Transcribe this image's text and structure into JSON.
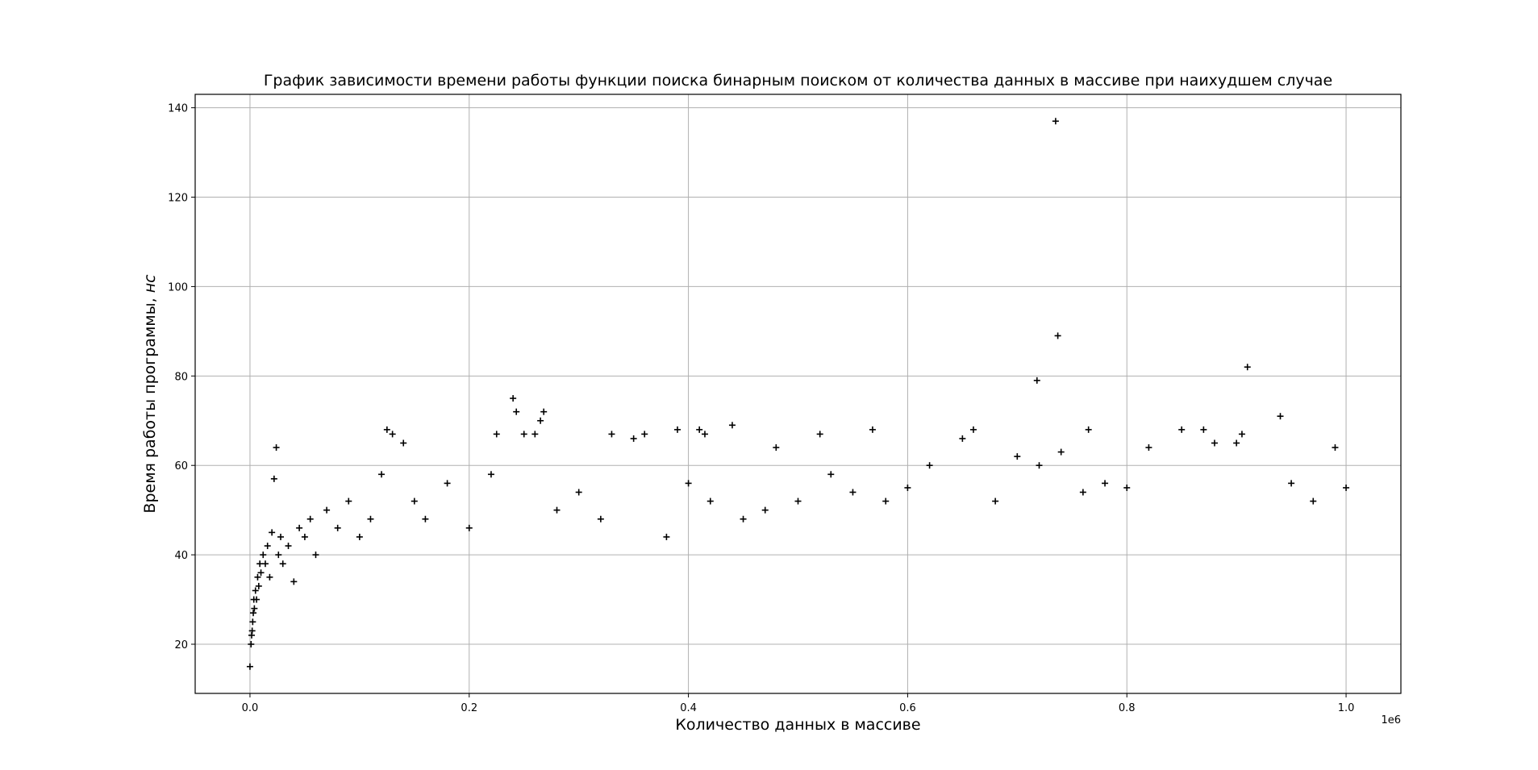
{
  "chart_data": {
    "type": "scatter",
    "title": "График зависимости времени работы функции поиска бинарным поиском от количества данных в массиве при наихудшем случае",
    "xlabel": "Количество данных в массиве",
    "ylabel_main": "Время работы программы, ",
    "ylabel_unit": "нс",
    "x_offset_label": "1e6",
    "xlim": [
      -0.05,
      1.05
    ],
    "ylim": [
      9,
      143
    ],
    "x_scale": 1000000,
    "xticks": [
      0.0,
      0.2,
      0.4,
      0.6,
      0.8,
      1.0
    ],
    "xtick_labels": [
      "0.0",
      "0.2",
      "0.4",
      "0.6",
      "0.8",
      "1.0"
    ],
    "yticks": [
      20,
      40,
      60,
      80,
      100,
      120,
      140
    ],
    "ytick_labels": [
      "20",
      "40",
      "60",
      "80",
      "100",
      "120",
      "140"
    ],
    "grid": true,
    "marker": "+",
    "marker_color": "#000000",
    "series": [
      {
        "points": [
          [
            0,
            15
          ],
          [
            1000,
            20
          ],
          [
            1500,
            22
          ],
          [
            2000,
            23
          ],
          [
            2500,
            25
          ],
          [
            3000,
            27
          ],
          [
            3500,
            30
          ],
          [
            4000,
            28
          ],
          [
            5000,
            32
          ],
          [
            6000,
            30
          ],
          [
            7000,
            35
          ],
          [
            8000,
            33
          ],
          [
            9000,
            38
          ],
          [
            10000,
            36
          ],
          [
            12000,
            40
          ],
          [
            14000,
            38
          ],
          [
            16000,
            42
          ],
          [
            18000,
            35
          ],
          [
            20000,
            45
          ],
          [
            22000,
            57
          ],
          [
            24000,
            64
          ],
          [
            26000,
            40
          ],
          [
            28000,
            44
          ],
          [
            30000,
            38
          ],
          [
            35000,
            42
          ],
          [
            40000,
            34
          ],
          [
            45000,
            46
          ],
          [
            50000,
            44
          ],
          [
            55000,
            48
          ],
          [
            60000,
            40
          ],
          [
            70000,
            50
          ],
          [
            80000,
            46
          ],
          [
            90000,
            52
          ],
          [
            100000,
            44
          ],
          [
            110000,
            48
          ],
          [
            120000,
            58
          ],
          [
            125000,
            68
          ],
          [
            130000,
            67
          ],
          [
            140000,
            65
          ],
          [
            150000,
            52
          ],
          [
            160000,
            48
          ],
          [
            180000,
            56
          ],
          [
            200000,
            46
          ],
          [
            220000,
            58
          ],
          [
            225000,
            67
          ],
          [
            240000,
            75
          ],
          [
            243000,
            72
          ],
          [
            250000,
            67
          ],
          [
            260000,
            67
          ],
          [
            265000,
            70
          ],
          [
            268000,
            72
          ],
          [
            280000,
            50
          ],
          [
            300000,
            54
          ],
          [
            320000,
            48
          ],
          [
            330000,
            67
          ],
          [
            350000,
            66
          ],
          [
            360000,
            67
          ],
          [
            380000,
            44
          ],
          [
            390000,
            68
          ],
          [
            400000,
            56
          ],
          [
            410000,
            68
          ],
          [
            415000,
            67
          ],
          [
            420000,
            52
          ],
          [
            440000,
            69
          ],
          [
            450000,
            48
          ],
          [
            470000,
            50
          ],
          [
            480000,
            64
          ],
          [
            500000,
            52
          ],
          [
            520000,
            67
          ],
          [
            530000,
            58
          ],
          [
            550000,
            54
          ],
          [
            568000,
            68
          ],
          [
            580000,
            52
          ],
          [
            600000,
            55
          ],
          [
            620000,
            60
          ],
          [
            650000,
            66
          ],
          [
            660000,
            68
          ],
          [
            680000,
            52
          ],
          [
            700000,
            62
          ],
          [
            718000,
            79
          ],
          [
            720000,
            60
          ],
          [
            735000,
            137
          ],
          [
            737000,
            89
          ],
          [
            740000,
            63
          ],
          [
            760000,
            54
          ],
          [
            765000,
            68
          ],
          [
            780000,
            56
          ],
          [
            800000,
            55
          ],
          [
            820000,
            64
          ],
          [
            850000,
            68
          ],
          [
            870000,
            68
          ],
          [
            880000,
            65
          ],
          [
            900000,
            65
          ],
          [
            905000,
            67
          ],
          [
            910000,
            82
          ],
          [
            940000,
            71
          ],
          [
            950000,
            56
          ],
          [
            970000,
            52
          ],
          [
            990000,
            64
          ],
          [
            1000000,
            55
          ]
        ]
      }
    ]
  }
}
